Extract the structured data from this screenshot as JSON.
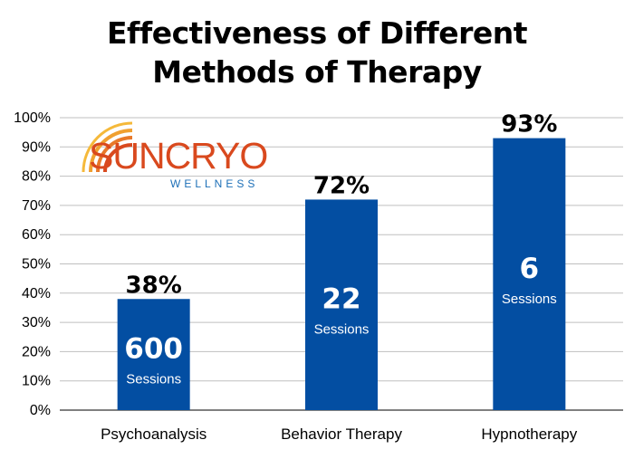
{
  "title_lines": [
    "Effectiveness of Different",
    "Methods of Therapy"
  ],
  "logo": {
    "name": "SUNCRYO",
    "tagline": "WELLNESS"
  },
  "colors": {
    "bar": "#034ea2",
    "grid": "#bfbfbf",
    "axis": "#000000",
    "logo_orange": "#d9491e",
    "logo_blue": "#1c6fb7"
  },
  "chart_data": {
    "type": "bar",
    "title": "Effectiveness of Different Methods of Therapy",
    "categories": [
      "Psychoanalysis",
      "Behavior Therapy",
      "Hypnotherapy"
    ],
    "values": [
      38,
      72,
      93
    ],
    "value_labels": [
      "38%",
      "72%",
      "93%"
    ],
    "sessions": [
      "600",
      "22",
      "6"
    ],
    "sessions_label": "Sessions",
    "ylim": [
      0,
      100
    ],
    "yticks": [
      0,
      10,
      20,
      30,
      40,
      50,
      60,
      70,
      80,
      90,
      100
    ],
    "ytick_suffix": "%",
    "grid": true,
    "xlabel": "",
    "ylabel": ""
  }
}
